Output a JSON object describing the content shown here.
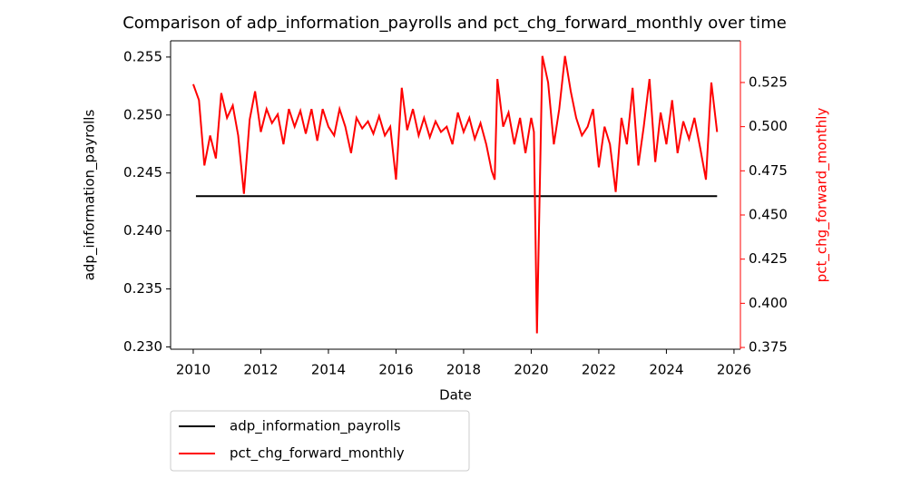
{
  "chart_data": {
    "type": "line",
    "title": "Comparison of adp_information_payrolls and pct_chg_forward_monthly over time",
    "x_label": "Date",
    "y_label": "adp_information_payrolls",
    "y2_label": "pct_chg_forward_monthly",
    "xlim": [
      2009.33,
      2026.19
    ],
    "xticks": [
      2010,
      2012,
      2014,
      2016,
      2018,
      2020,
      2022,
      2024,
      2026
    ],
    "ylim": [
      0.2298,
      0.2564
    ],
    "yticks": [
      {
        "value": 0.23,
        "label": "0.230"
      },
      0.235,
      {
        "value": 0.24,
        "label": "0.240"
      },
      0.245,
      {
        "value": 0.25,
        "label": "0.250"
      },
      0.255
    ],
    "y2lim": [
      0.374,
      0.5486
    ],
    "y2ticks": [
      0.375,
      {
        "value": 0.4,
        "label": "0.400"
      },
      0.425,
      {
        "value": 0.45,
        "label": "0.450"
      },
      0.475,
      {
        "value": 0.5,
        "label": "0.500"
      },
      0.525
    ],
    "y2color": "#ff0000",
    "legend": "below",
    "series": [
      {
        "name": "adp_information_payrolls",
        "color": "#000000",
        "x": [
          2010.08,
          2025.5
        ],
        "values": [
          0.243,
          0.243
        ]
      },
      {
        "name": "pct_chg_forward_monthly",
        "color": "#ff0000",
        "axis": "y2",
        "x": [
          2010.0,
          2010.17,
          2010.33,
          2010.5,
          2010.67,
          2010.83,
          2011.0,
          2011.17,
          2011.33,
          2011.5,
          2011.67,
          2011.83,
          2012.0,
          2012.17,
          2012.33,
          2012.5,
          2012.67,
          2012.83,
          2013.0,
          2013.17,
          2013.33,
          2013.5,
          2013.67,
          2013.83,
          2014.0,
          2014.17,
          2014.33,
          2014.5,
          2014.67,
          2014.83,
          2015.0,
          2015.17,
          2015.33,
          2015.5,
          2015.67,
          2015.83,
          2016.0,
          2016.17,
          2016.33,
          2016.5,
          2016.67,
          2016.83,
          2017.0,
          2017.17,
          2017.33,
          2017.5,
          2017.67,
          2017.83,
          2018.0,
          2018.17,
          2018.33,
          2018.5,
          2018.67,
          2018.83,
          2018.92,
          2019.0,
          2019.17,
          2019.33,
          2019.5,
          2019.67,
          2019.83,
          2020.0,
          2020.08,
          2020.17,
          2020.33,
          2020.5,
          2020.67,
          2020.83,
          2021.0,
          2021.17,
          2021.33,
          2021.5,
          2021.67,
          2021.83,
          2022.0,
          2022.17,
          2022.33,
          2022.5,
          2022.67,
          2022.83,
          2023.0,
          2023.17,
          2023.33,
          2023.5,
          2023.67,
          2023.83,
          2024.0,
          2024.17,
          2024.33,
          2024.5,
          2024.67,
          2024.83,
          2025.0,
          2025.17,
          2025.33,
          2025.5
        ],
        "values": [
          0.524,
          0.515,
          0.478,
          0.495,
          0.482,
          0.519,
          0.505,
          0.512,
          0.495,
          0.462,
          0.504,
          0.52,
          0.497,
          0.51,
          0.502,
          0.507,
          0.49,
          0.51,
          0.5,
          0.509,
          0.496,
          0.51,
          0.492,
          0.51,
          0.5,
          0.495,
          0.51,
          0.5,
          0.485,
          0.505,
          0.499,
          0.503,
          0.496,
          0.506,
          0.495,
          0.5,
          0.47,
          0.522,
          0.498,
          0.51,
          0.495,
          0.505,
          0.494,
          0.503,
          0.497,
          0.5,
          0.49,
          0.508,
          0.497,
          0.505,
          0.493,
          0.502,
          0.49,
          0.475,
          0.47,
          0.527,
          0.5,
          0.508,
          0.49,
          0.505,
          0.485,
          0.505,
          0.497,
          0.383,
          0.54,
          0.525,
          0.49,
          0.51,
          0.54,
          0.52,
          0.505,
          0.495,
          0.5,
          0.51,
          0.477,
          0.5,
          0.49,
          0.463,
          0.505,
          0.49,
          0.522,
          0.478,
          0.5,
          0.527,
          0.48,
          0.508,
          0.49,
          0.515,
          0.485,
          0.503,
          0.493,
          0.505,
          0.488,
          0.47,
          0.525,
          0.497
        ]
      }
    ]
  }
}
